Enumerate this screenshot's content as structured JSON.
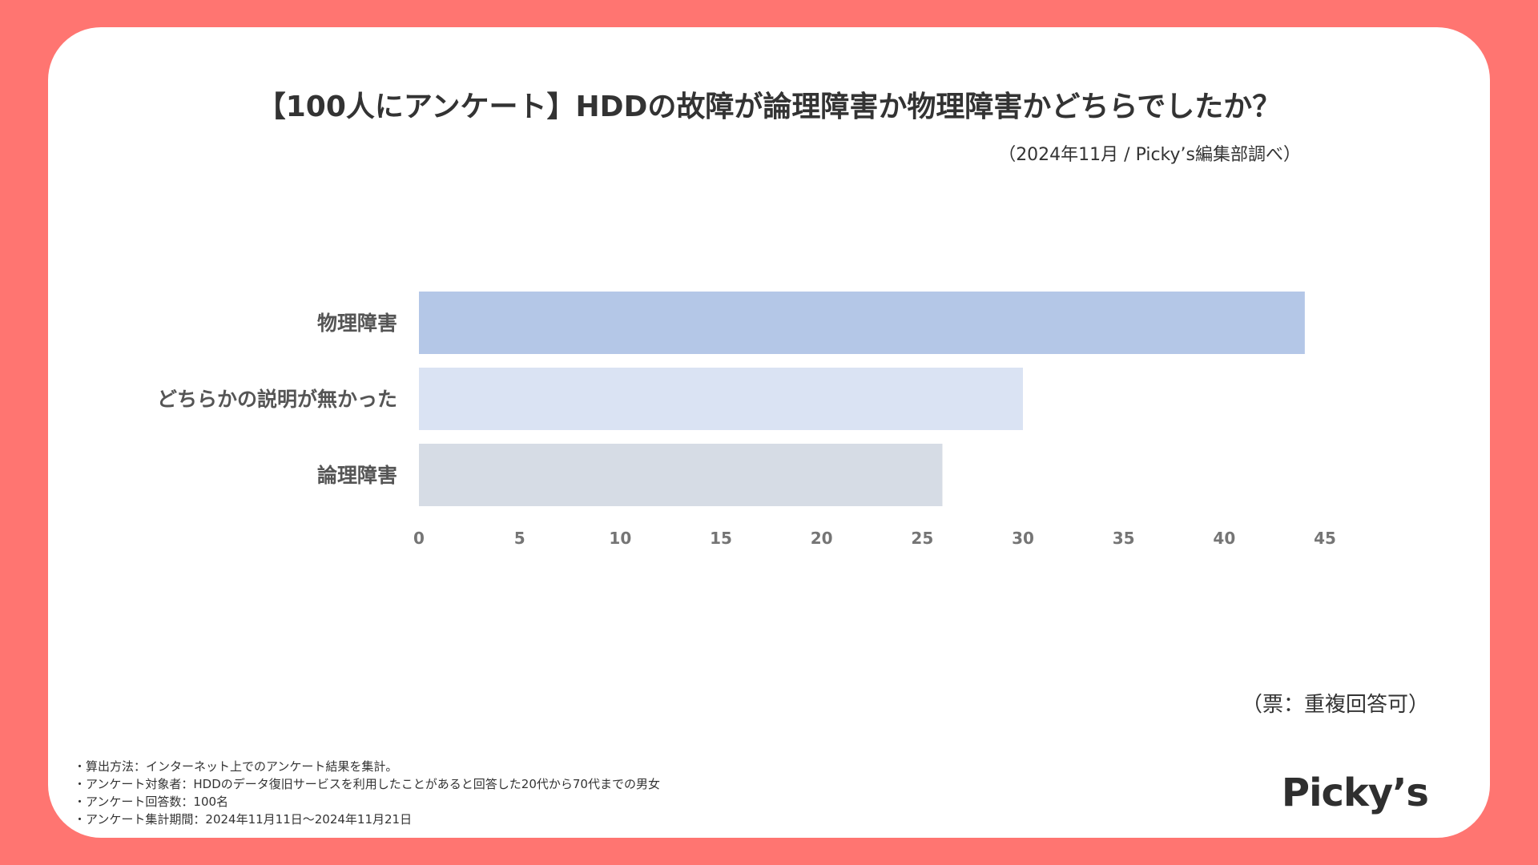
{
  "page": {
    "background": "#ff7571",
    "card_background": "#ffffff",
    "vote_note": "（票：重複回答可）",
    "notes": [
      "・算出方法：インターネット上でのアンケート結果を集計。",
      "・アンケート対象者：HDDのデータ復旧サービスを利用したことがあると回答した20代から70代までの男女",
      "・アンケート回答数：100名",
      "・アンケート集計期間：2024年11月11日〜2024年11月21日"
    ],
    "brand": "Picky’s"
  },
  "chart_data": {
    "type": "bar",
    "orientation": "horizontal",
    "title": "【100人にアンケート】HDDの故障が論理障害か物理障害かどちらでしたか？",
    "subtitle": "（2024年11月 / Picky’s編集部調べ）",
    "categories": [
      "物理障害",
      "どちらかの説明が無かった",
      "論理障害"
    ],
    "values": [
      44,
      30,
      26
    ],
    "colors": [
      "#b4c7e7",
      "#dae3f3",
      "#d6dce5"
    ],
    "xlim": [
      0,
      45
    ],
    "xticks": [
      0,
      5,
      10,
      15,
      20,
      25,
      30,
      35,
      40,
      45
    ],
    "grid": false
  }
}
